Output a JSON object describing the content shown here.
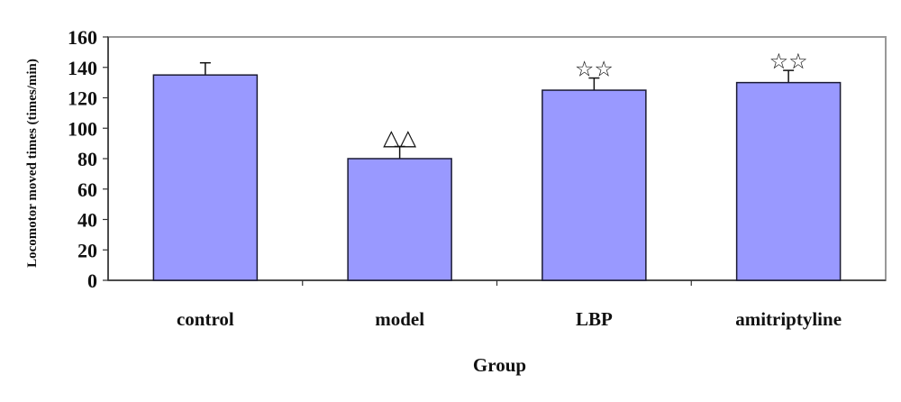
{
  "chart_data": {
    "type": "bar",
    "title": "",
    "xlabel": "Group",
    "ylabel": "Locomotor moved times (times/min)",
    "categories": [
      "control",
      "model",
      "LBP",
      "amitriptyline"
    ],
    "values": [
      135,
      80,
      125,
      130
    ],
    "error_upper": [
      8,
      8,
      8,
      8
    ],
    "annotations": [
      "",
      "△△",
      "☆☆",
      "☆☆"
    ],
    "ylim": [
      0,
      160
    ],
    "yticks": [
      0,
      20,
      40,
      60,
      80,
      100,
      120,
      140,
      160
    ],
    "grid": false,
    "legend": null,
    "bar_color": "#9999ff",
    "bar_edge_color": "#1a1a33"
  }
}
